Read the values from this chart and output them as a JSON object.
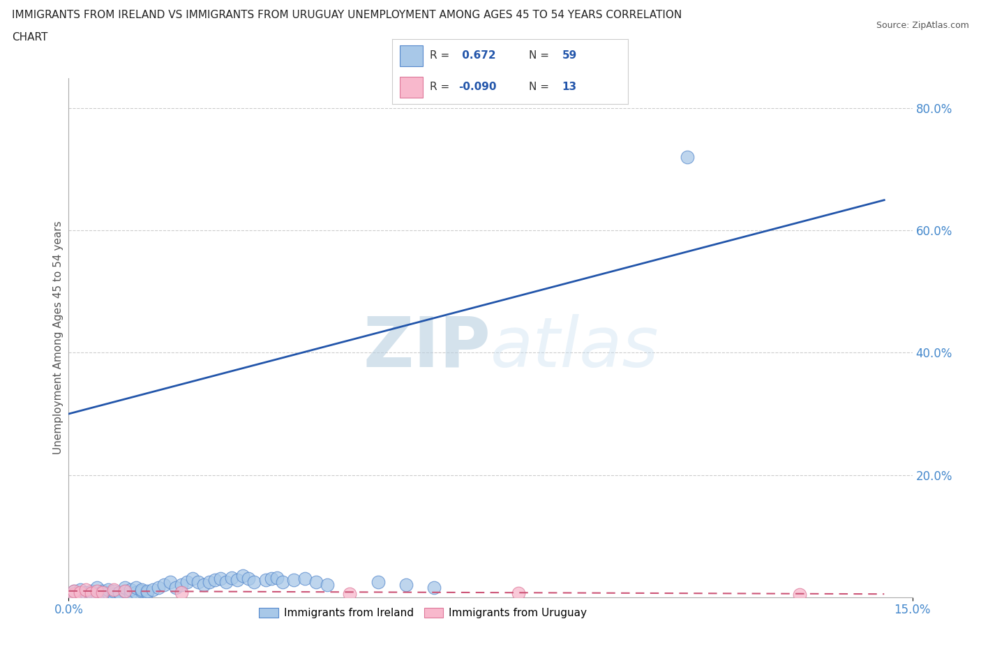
{
  "title_line1": "IMMIGRANTS FROM IRELAND VS IMMIGRANTS FROM URUGUAY UNEMPLOYMENT AMONG AGES 45 TO 54 YEARS CORRELATION",
  "title_line2": "CHART",
  "source": "Source: ZipAtlas.com",
  "ylabel": "Unemployment Among Ages 45 to 54 years",
  "ireland_R": 0.672,
  "ireland_N": 59,
  "uruguay_R": -0.09,
  "uruguay_N": 13,
  "ireland_color": "#a8c8e8",
  "ireland_edge_color": "#5588cc",
  "ireland_line_color": "#2255aa",
  "uruguay_color": "#f8b8cc",
  "uruguay_edge_color": "#dd7799",
  "uruguay_line_color": "#cc5577",
  "watermark_text": "ZIPatlas",
  "watermark_color": "#d0dff0",
  "xlim": [
    0.0,
    0.15
  ],
  "ylim": [
    0.0,
    0.85
  ],
  "x_tick_labels": [
    "0.0%",
    "15.0%"
  ],
  "y_tick_labels_right": [
    "20.0%",
    "40.0%",
    "60.0%",
    "80.0%"
  ],
  "y_tick_values": [
    0.2,
    0.4,
    0.6,
    0.8
  ],
  "background_color": "#ffffff",
  "grid_color": "#cccccc",
  "tick_color": "#4488cc",
  "legend_ireland_label": "Immigrants from Ireland",
  "legend_uruguay_label": "Immigrants from Uruguay",
  "ireland_x": [
    0.001,
    0.001,
    0.002,
    0.002,
    0.003,
    0.003,
    0.004,
    0.004,
    0.005,
    0.005,
    0.006,
    0.006,
    0.007,
    0.007,
    0.008,
    0.008,
    0.009,
    0.009,
    0.01,
    0.01,
    0.011,
    0.011,
    0.012,
    0.012,
    0.013,
    0.013,
    0.014,
    0.014,
    0.015,
    0.016,
    0.017,
    0.018,
    0.019,
    0.02,
    0.021,
    0.022,
    0.023,
    0.024,
    0.025,
    0.026,
    0.027,
    0.028,
    0.029,
    0.03,
    0.031,
    0.032,
    0.033,
    0.035,
    0.036,
    0.037,
    0.038,
    0.04,
    0.042,
    0.044,
    0.046,
    0.055,
    0.06,
    0.065,
    0.11
  ],
  "ireland_y": [
    0.005,
    0.01,
    0.005,
    0.012,
    0.006,
    0.008,
    0.007,
    0.01,
    0.005,
    0.015,
    0.006,
    0.01,
    0.008,
    0.012,
    0.005,
    0.01,
    0.007,
    0.008,
    0.01,
    0.015,
    0.006,
    0.012,
    0.008,
    0.015,
    0.01,
    0.012,
    0.007,
    0.01,
    0.012,
    0.015,
    0.02,
    0.025,
    0.015,
    0.02,
    0.025,
    0.03,
    0.025,
    0.02,
    0.025,
    0.028,
    0.03,
    0.025,
    0.032,
    0.028,
    0.035,
    0.03,
    0.025,
    0.028,
    0.03,
    0.032,
    0.025,
    0.028,
    0.03,
    0.025,
    0.02,
    0.025,
    0.02,
    0.015,
    0.72
  ],
  "uruguay_x": [
    0.001,
    0.001,
    0.002,
    0.003,
    0.004,
    0.005,
    0.006,
    0.008,
    0.01,
    0.02,
    0.05,
    0.08,
    0.13
  ],
  "uruguay_y": [
    0.005,
    0.01,
    0.008,
    0.012,
    0.006,
    0.01,
    0.008,
    0.012,
    0.01,
    0.008,
    0.005,
    0.006,
    0.004
  ],
  "ireland_line_x0": 0.0,
  "ireland_line_y0": 0.3,
  "ireland_line_x1": 0.145,
  "ireland_line_y1": 0.65,
  "uruguay_line_x0": 0.0,
  "uruguay_line_y0": 0.01,
  "uruguay_line_x1": 0.145,
  "uruguay_line_y1": 0.005
}
